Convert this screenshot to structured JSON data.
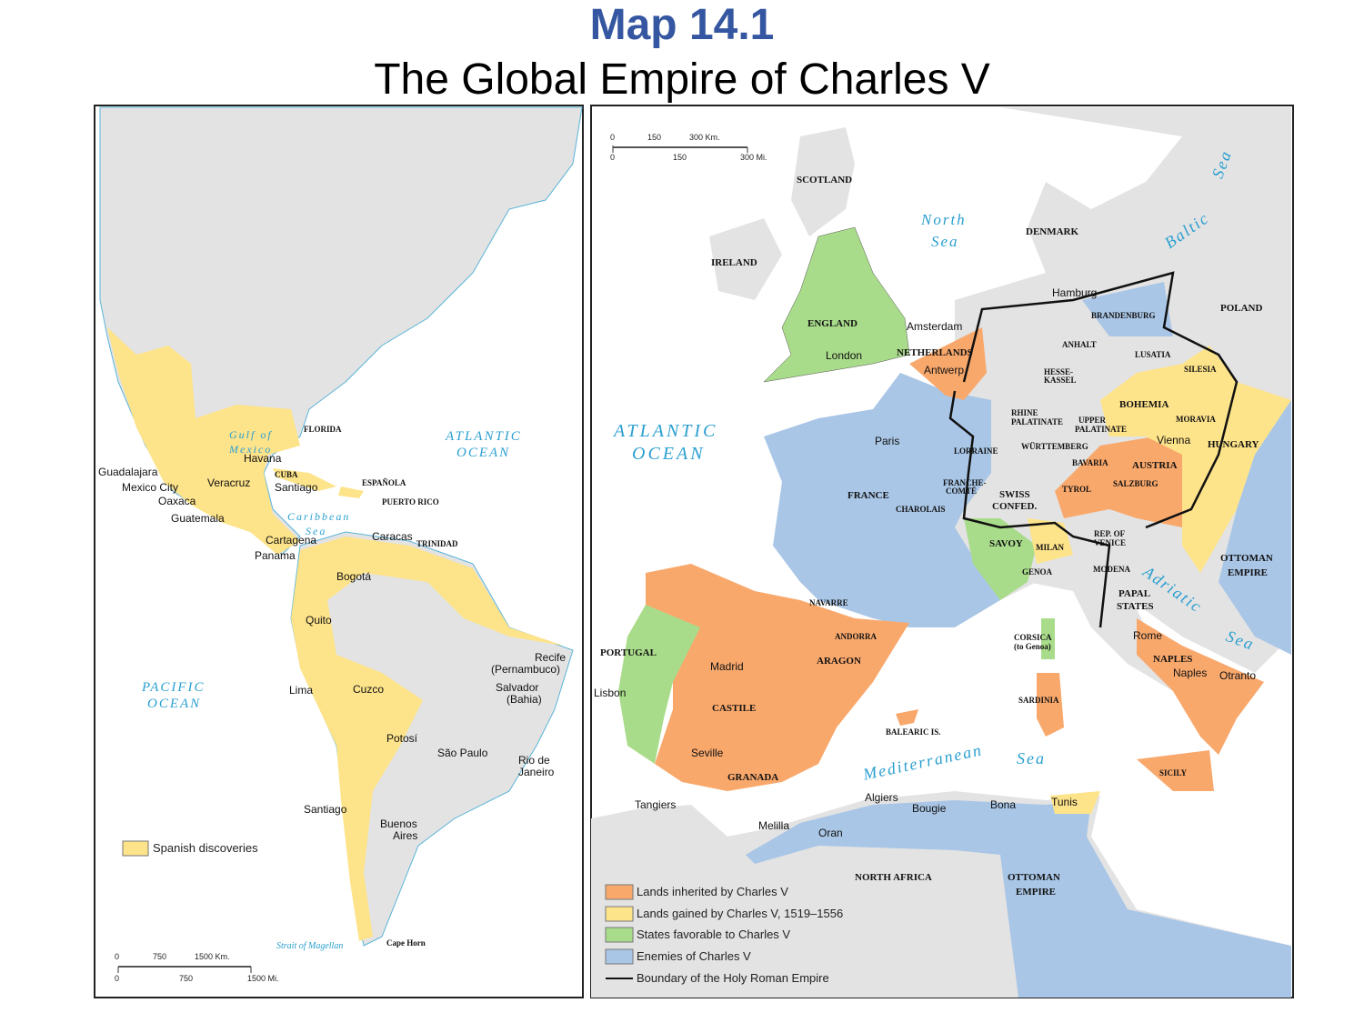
{
  "title": "Map 14.1",
  "subtitle": "The Global Empire of Charles V",
  "colors": {
    "inherited": "#f9a86c",
    "gained": "#fde38a",
    "favorable": "#a9dc8a",
    "enemies": "#a9c6e6",
    "land": "#e3e3e3",
    "water_label": "#2a9fd0",
    "title": "#3556a0"
  },
  "americas": {
    "labels": [
      "Guadalajara",
      "Mexico City",
      "Oaxaca",
      "Guatemala",
      "Veracruz",
      "Havana",
      "CUBA",
      "Santiago",
      "FLORIDA",
      "ESPAÑOLA",
      "PUERTO RICO",
      "Cartagena",
      "Panama",
      "Caracas",
      "TRINIDAD",
      "Bogotá",
      "Quito",
      "Lima",
      "Cuzco",
      "Potosí",
      "Recife",
      "(Pernambuco)",
      "Salvador",
      "(Bahia)",
      "São Paulo",
      "Rio de",
      "Janeiro",
      "Santiago",
      "Buenos",
      "Aires",
      "Cape Horn"
    ],
    "water": [
      "Gulf of",
      "Mexico",
      "Caribbean",
      "Sea",
      "ATLANTIC",
      "OCEAN",
      "PACIFIC",
      "OCEAN",
      "Strait of Magellan"
    ],
    "legend": "Spanish discoveries",
    "scale": {
      "km": [
        "0",
        "750",
        "1500 Km."
      ],
      "mi": [
        "0",
        "750",
        "1500 Mi."
      ]
    }
  },
  "europe": {
    "labels": [
      "SCOTLAND",
      "IRELAND",
      "ENGLAND",
      "London",
      "Amsterdam",
      "NETHERLANDS",
      "Antwerp",
      "DENMARK",
      "Hamburg",
      "BRANDENBURG",
      "POLAND",
      "ANHALT",
      "LUSATIA",
      "SILESIA",
      "HESSE-",
      "KASSEL",
      "BOHEMIA",
      "MORAVIA",
      "HUNGARY",
      "Vienna",
      "AUSTRIA",
      "RHINE",
      "PALATINATE",
      "UPPER",
      "PALATINATE",
      "WÜRTTEMBERG",
      "BAVARIA",
      "SALZBURG",
      "TYROL",
      "LORRAINE",
      "FRANCHE-",
      "COMTÉ",
      "SWISS",
      "CONFED.",
      "CHAROLAIS",
      "Paris",
      "FRANCE",
      "SAVOY",
      "MILAN",
      "GENOA",
      "REP. OF",
      "VENICE",
      "MODENA",
      "PAPAL",
      "STATES",
      "Rome",
      "NAPLES",
      "Naples",
      "Otranto",
      "OTTOMAN",
      "EMPIRE",
      "CORSICA",
      "(to Genoa)",
      "SARDINIA",
      "SICILY",
      "BALEARIC IS.",
      "NAVARRE",
      "ANDORRA",
      "ARAGON",
      "PORTUGAL",
      "Lisbon",
      "Madrid",
      "CASTILE",
      "Seville",
      "GRANADA",
      "Tangiers",
      "Melilla",
      "Oran",
      "Algiers",
      "Bougie",
      "Bona",
      "Tunis",
      "NORTH AFRICA",
      "OTTOMAN",
      "EMPIRE"
    ],
    "water": [
      "North",
      "Sea",
      "Baltic",
      "Sea",
      "ATLANTIC",
      "OCEAN",
      "Adriatic",
      "Sea",
      "Mediterranean",
      "Sea"
    ],
    "legend": [
      "Lands inherited by Charles V",
      "Lands gained by Charles V, 1519–1556",
      "States favorable to Charles V",
      "Enemies of Charles V",
      "Boundary of the Holy Roman Empire"
    ],
    "scale": {
      "km": [
        "0",
        "150",
        "300 Km."
      ],
      "mi": [
        "0",
        "150",
        "300 Mi."
      ]
    }
  }
}
